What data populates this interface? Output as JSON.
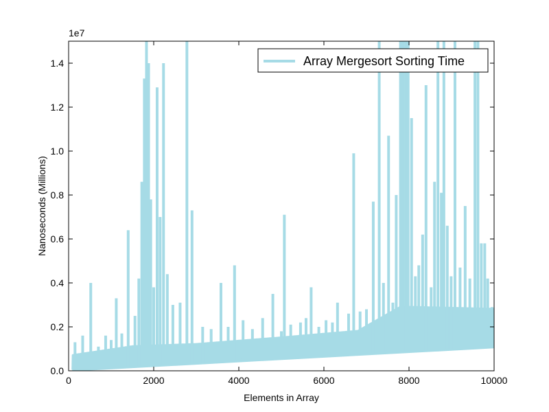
{
  "chart_data": {
    "type": "line",
    "xlabel": "Elements in Array",
    "ylabel": "Nanoseconds (Millions)",
    "offset_text": "1e7",
    "xlim": [
      0,
      10000
    ],
    "ylim": [
      0,
      15000000
    ],
    "x_ticks": [
      0,
      2000,
      4000,
      6000,
      8000,
      10000
    ],
    "x_tick_labels": [
      "0",
      "2000",
      "4000",
      "6000",
      "8000",
      "10000"
    ],
    "y_ticks": [
      0,
      2000000,
      4000000,
      6000000,
      8000000,
      10000000,
      12000000,
      14000000
    ],
    "y_tick_labels": [
      "0.0",
      "0.2",
      "0.4",
      "0.6",
      "0.8",
      "1.0",
      "1.2",
      "1.4"
    ],
    "grid": false,
    "legend_position": "top-right",
    "color": "#a6dbe6",
    "series": [
      {
        "name": "Array Mergesort Sorting Time",
        "baseline": {
          "x": [
            100,
            10000
          ],
          "y": [
            50000,
            1100000
          ]
        },
        "band_top": {
          "x": [
            100,
            1500,
            3000,
            5000,
            6800,
            7800,
            10000
          ],
          "y": [
            700000,
            1100000,
            1200000,
            1500000,
            1800000,
            2900000,
            2800000
          ]
        },
        "spikes": [
          {
            "x": 150,
            "y": 1300000
          },
          {
            "x": 330,
            "y": 1600000
          },
          {
            "x": 520,
            "y": 4000000
          },
          {
            "x": 700,
            "y": 1100000
          },
          {
            "x": 870,
            "y": 1600000
          },
          {
            "x": 1000,
            "y": 1400000
          },
          {
            "x": 1120,
            "y": 3300000
          },
          {
            "x": 1250,
            "y": 1700000
          },
          {
            "x": 1400,
            "y": 6400000
          },
          {
            "x": 1560,
            "y": 2500000
          },
          {
            "x": 1650,
            "y": 4200000
          },
          {
            "x": 1720,
            "y": 8600000
          },
          {
            "x": 1780,
            "y": 13300000
          },
          {
            "x": 1830,
            "y": 15000000
          },
          {
            "x": 1880,
            "y": 14000000
          },
          {
            "x": 1930,
            "y": 7800000
          },
          {
            "x": 2000,
            "y": 3800000
          },
          {
            "x": 2080,
            "y": 12900000
          },
          {
            "x": 2150,
            "y": 7000000
          },
          {
            "x": 2230,
            "y": 14000000
          },
          {
            "x": 2320,
            "y": 4400000
          },
          {
            "x": 2450,
            "y": 3000000
          },
          {
            "x": 2620,
            "y": 3100000
          },
          {
            "x": 2780,
            "y": 15000000
          },
          {
            "x": 2900,
            "y": 7300000
          },
          {
            "x": 3150,
            "y": 2000000
          },
          {
            "x": 3350,
            "y": 1900000
          },
          {
            "x": 3580,
            "y": 4000000
          },
          {
            "x": 3750,
            "y": 2000000
          },
          {
            "x": 3900,
            "y": 4800000
          },
          {
            "x": 4100,
            "y": 2300000
          },
          {
            "x": 4320,
            "y": 1900000
          },
          {
            "x": 4560,
            "y": 2400000
          },
          {
            "x": 4800,
            "y": 3500000
          },
          {
            "x": 5000,
            "y": 1800000
          },
          {
            "x": 5070,
            "y": 7100000
          },
          {
            "x": 5220,
            "y": 2100000
          },
          {
            "x": 5450,
            "y": 2200000
          },
          {
            "x": 5580,
            "y": 2400000
          },
          {
            "x": 5700,
            "y": 3800000
          },
          {
            "x": 5880,
            "y": 2000000
          },
          {
            "x": 6050,
            "y": 2300000
          },
          {
            "x": 6200,
            "y": 2200000
          },
          {
            "x": 6320,
            "y": 3100000
          },
          {
            "x": 6450,
            "y": 1700000
          },
          {
            "x": 6580,
            "y": 2600000
          },
          {
            "x": 6700,
            "y": 9900000
          },
          {
            "x": 6850,
            "y": 2700000
          },
          {
            "x": 7000,
            "y": 2800000
          },
          {
            "x": 7160,
            "y": 7700000
          },
          {
            "x": 7300,
            "y": 15000000
          },
          {
            "x": 7400,
            "y": 4000000
          },
          {
            "x": 7520,
            "y": 10700000
          },
          {
            "x": 7620,
            "y": 3100000
          },
          {
            "x": 7700,
            "y": 8000000
          },
          {
            "x": 7800,
            "y": 15000000
          },
          {
            "x": 7860,
            "y": 15000000
          },
          {
            "x": 7920,
            "y": 15000000
          },
          {
            "x": 7980,
            "y": 15000000
          },
          {
            "x": 8060,
            "y": 11500000
          },
          {
            "x": 8150,
            "y": 4300000
          },
          {
            "x": 8230,
            "y": 4800000
          },
          {
            "x": 8320,
            "y": 6200000
          },
          {
            "x": 8400,
            "y": 13000000
          },
          {
            "x": 8520,
            "y": 3800000
          },
          {
            "x": 8600,
            "y": 8600000
          },
          {
            "x": 8680,
            "y": 15000000
          },
          {
            "x": 8760,
            "y": 8100000
          },
          {
            "x": 8820,
            "y": 15000000
          },
          {
            "x": 8900,
            "y": 6600000
          },
          {
            "x": 8990,
            "y": 4300000
          },
          {
            "x": 9080,
            "y": 15000000
          },
          {
            "x": 9200,
            "y": 4700000
          },
          {
            "x": 9320,
            "y": 7500000
          },
          {
            "x": 9430,
            "y": 4200000
          },
          {
            "x": 9550,
            "y": 15000000
          },
          {
            "x": 9620,
            "y": 15000000
          },
          {
            "x": 9700,
            "y": 5800000
          },
          {
            "x": 9780,
            "y": 5800000
          },
          {
            "x": 9850,
            "y": 4200000
          },
          {
            "x": 9950,
            "y": 2900000
          }
        ]
      }
    ]
  }
}
